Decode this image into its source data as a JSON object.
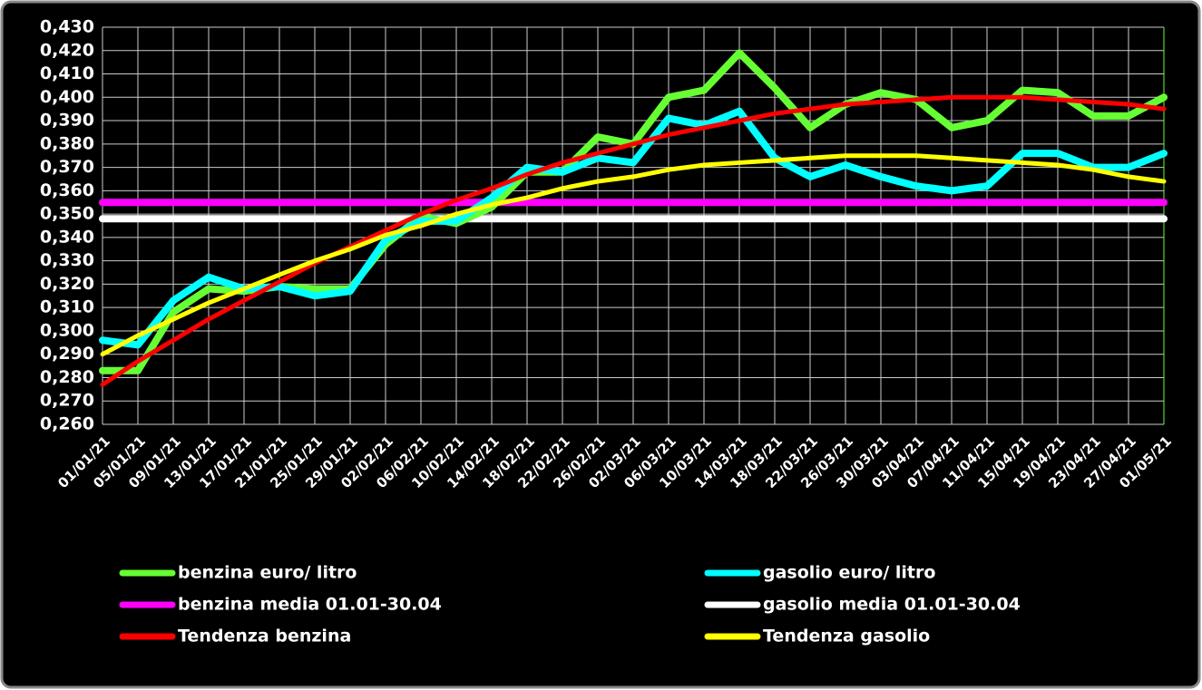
{
  "chart_data": {
    "type": "line",
    "categories": [
      "01/01/21",
      "05/01/21",
      "09/01/21",
      "13/01/21",
      "17/01/21",
      "21/01/21",
      "25/01/21",
      "29/01/21",
      "02/02/21",
      "06/02/21",
      "10/02/21",
      "14/02/21",
      "18/02/21",
      "22/02/21",
      "26/02/21",
      "02/03/21",
      "06/03/21",
      "10/03/21",
      "14/03/21",
      "18/03/21",
      "22/03/21",
      "26/03/21",
      "30/03/21",
      "03/04/21",
      "07/04/21",
      "11/04/21",
      "15/04/21",
      "19/04/21",
      "23/04/21",
      "27/04/21",
      "01/05/21"
    ],
    "series": [
      {
        "name": "benzina euro/ litro",
        "color": "#66ff33",
        "values": [
          0.283,
          0.283,
          0.308,
          0.318,
          0.317,
          0.319,
          0.318,
          0.318,
          0.337,
          0.349,
          0.346,
          0.353,
          0.368,
          0.368,
          0.383,
          0.38,
          0.4,
          0.403,
          0.419,
          0.404,
          0.387,
          0.397,
          0.402,
          0.399,
          0.387,
          0.39,
          0.403,
          0.402,
          0.392,
          0.392,
          0.4
        ]
      },
      {
        "name": "gasolio euro/ litro",
        "color": "#00ffff",
        "values": [
          0.296,
          0.294,
          0.313,
          0.323,
          0.318,
          0.319,
          0.315,
          0.317,
          0.339,
          0.347,
          0.347,
          0.357,
          0.37,
          0.368,
          0.374,
          0.372,
          0.391,
          0.388,
          0.394,
          0.374,
          0.366,
          0.371,
          0.366,
          0.362,
          0.36,
          0.362,
          0.376,
          0.376,
          0.37,
          0.37,
          0.376
        ]
      },
      {
        "name": "benzina media 01.01-30.04",
        "color": "#ff00ff",
        "values": [
          0.355,
          0.355,
          0.355,
          0.355,
          0.355,
          0.355,
          0.355,
          0.355,
          0.355,
          0.355,
          0.355,
          0.355,
          0.355,
          0.355,
          0.355,
          0.355,
          0.355,
          0.355,
          0.355,
          0.355,
          0.355,
          0.355,
          0.355,
          0.355,
          0.355,
          0.355,
          0.355,
          0.355,
          0.355,
          0.355,
          0.355
        ]
      },
      {
        "name": "gasolio media 01.01-30.04",
        "color": "#ffffff",
        "values": [
          0.348,
          0.348,
          0.348,
          0.348,
          0.348,
          0.348,
          0.348,
          0.348,
          0.348,
          0.348,
          0.348,
          0.348,
          0.348,
          0.348,
          0.348,
          0.348,
          0.348,
          0.348,
          0.348,
          0.348,
          0.348,
          0.348,
          0.348,
          0.348,
          0.348,
          0.348,
          0.348,
          0.348,
          0.348,
          0.348,
          0.348
        ]
      },
      {
        "name": "Tendenza benzina",
        "color": "#ff0000",
        "values": [
          0.277,
          0.287,
          0.296,
          0.305,
          0.313,
          0.321,
          0.329,
          0.336,
          0.343,
          0.35,
          0.356,
          0.361,
          0.367,
          0.372,
          0.376,
          0.38,
          0.384,
          0.387,
          0.39,
          0.393,
          0.395,
          0.397,
          0.398,
          0.399,
          0.4,
          0.4,
          0.4,
          0.399,
          0.398,
          0.397,
          0.395
        ]
      },
      {
        "name": "Tendenza gasolio",
        "color": "#ffff00",
        "values": [
          0.29,
          0.298,
          0.305,
          0.312,
          0.318,
          0.324,
          0.33,
          0.335,
          0.341,
          0.345,
          0.35,
          0.354,
          0.357,
          0.361,
          0.364,
          0.366,
          0.369,
          0.371,
          0.372,
          0.373,
          0.374,
          0.375,
          0.375,
          0.375,
          0.374,
          0.373,
          0.372,
          0.371,
          0.369,
          0.366,
          0.364
        ]
      }
    ],
    "ylim": [
      0.26,
      0.43
    ],
    "yticks": [
      {
        "value": 0.26,
        "label": "0,260"
      },
      {
        "value": 0.27,
        "label": "0,270"
      },
      {
        "value": 0.28,
        "label": "0,280"
      },
      {
        "value": 0.29,
        "label": "0,290"
      },
      {
        "value": 0.3,
        "label": "0,300"
      },
      {
        "value": 0.31,
        "label": "0,310"
      },
      {
        "value": 0.32,
        "label": "0,320"
      },
      {
        "value": 0.33,
        "label": "0,330"
      },
      {
        "value": 0.34,
        "label": "0,340"
      },
      {
        "value": 0.35,
        "label": "0,350"
      },
      {
        "value": 0.36,
        "label": "0,360"
      },
      {
        "value": 0.37,
        "label": "0,370"
      },
      {
        "value": 0.38,
        "label": "0,380"
      },
      {
        "value": 0.39,
        "label": "0,390"
      },
      {
        "value": 0.4,
        "label": "0,400"
      },
      {
        "value": 0.41,
        "label": "0,410"
      },
      {
        "value": 0.42,
        "label": "0,420"
      },
      {
        "value": 0.43,
        "label": "0,430"
      }
    ],
    "grid": true
  }
}
